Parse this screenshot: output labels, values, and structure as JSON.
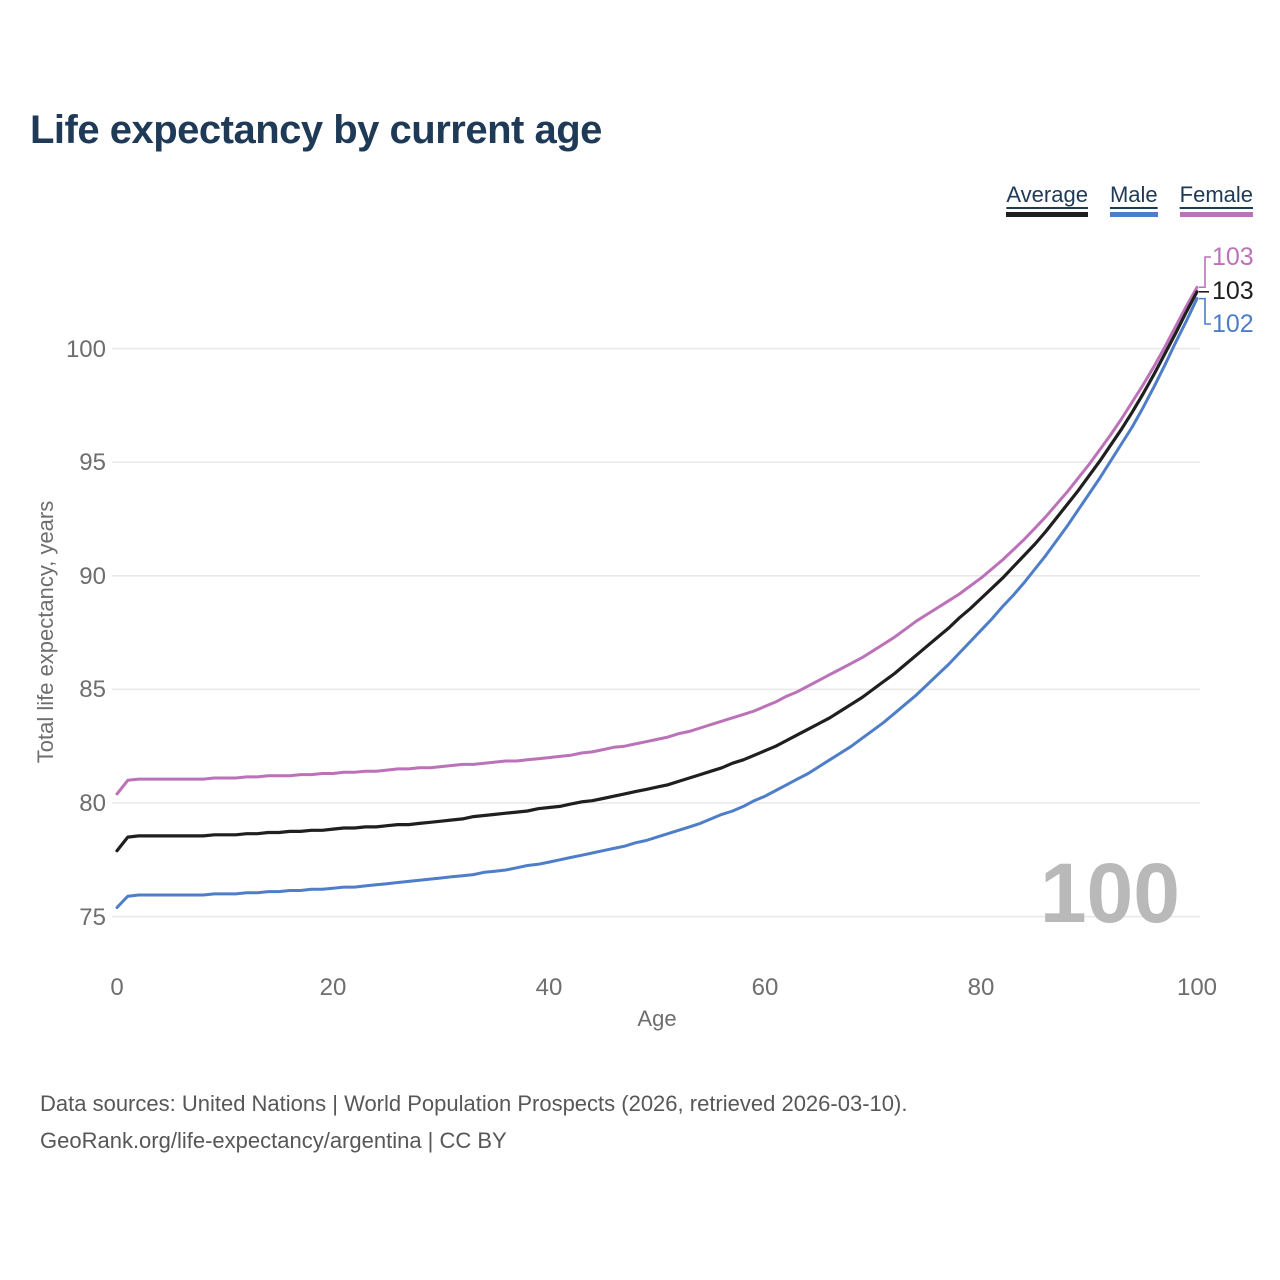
{
  "header": {
    "title": "Life expectancy by current age"
  },
  "chart_data": {
    "type": "line",
    "title": "Life expectancy by current age",
    "xlabel": "Age",
    "ylabel": "Total life expectancy, years",
    "xlim": [
      0,
      100
    ],
    "ylim": [
      74.5,
      104
    ],
    "xticks": [
      0,
      20,
      40,
      60,
      80,
      100
    ],
    "yticks": [
      75,
      80,
      85,
      90,
      95,
      100
    ],
    "grid": "horizontal-only",
    "legend_position": "top-right",
    "x": [
      0,
      1,
      5,
      10,
      15,
      20,
      25,
      30,
      35,
      40,
      45,
      50,
      55,
      60,
      65,
      70,
      75,
      80,
      85,
      90,
      95,
      100
    ],
    "series": [
      {
        "name": "Average",
        "color": "#1f1f1f",
        "end_label": "103",
        "values": [
          77.9,
          78.5,
          78.55,
          78.6,
          78.7,
          78.85,
          79.0,
          79.2,
          79.5,
          79.8,
          80.2,
          80.7,
          81.4,
          82.3,
          83.5,
          85.0,
          86.9,
          89.0,
          91.4,
          94.4,
          98.0,
          102.5
        ]
      },
      {
        "name": "Male",
        "color": "#4e7ec8",
        "end_label": "102",
        "values": [
          75.4,
          75.9,
          75.95,
          76.0,
          76.1,
          76.25,
          76.45,
          76.7,
          77.0,
          77.4,
          77.9,
          78.5,
          79.3,
          80.3,
          81.6,
          83.2,
          85.2,
          87.6,
          90.3,
          93.6,
          97.4,
          102.2
        ]
      },
      {
        "name": "Female",
        "color": "#bb72b8",
        "end_label": "103",
        "values": [
          80.4,
          81.0,
          81.05,
          81.1,
          81.2,
          81.3,
          81.45,
          81.6,
          81.8,
          82.0,
          82.35,
          82.8,
          83.45,
          84.25,
          85.4,
          86.7,
          88.3,
          89.9,
          92.1,
          94.9,
          98.4,
          102.7
        ]
      }
    ],
    "age_indicator": "100"
  },
  "footer": {
    "line1": "Data sources: United Nations | World Population Prospects (2026, retrieved 2026-03-10).",
    "line2": "GeoRank.org/life-expectancy/argentina | CC BY"
  },
  "colors": {
    "title": "#1e3a56",
    "tick_label": "#6e6e6e",
    "gridline": "#e9e9e9",
    "watermark": "#b9b9b9",
    "footer": "#575757"
  }
}
